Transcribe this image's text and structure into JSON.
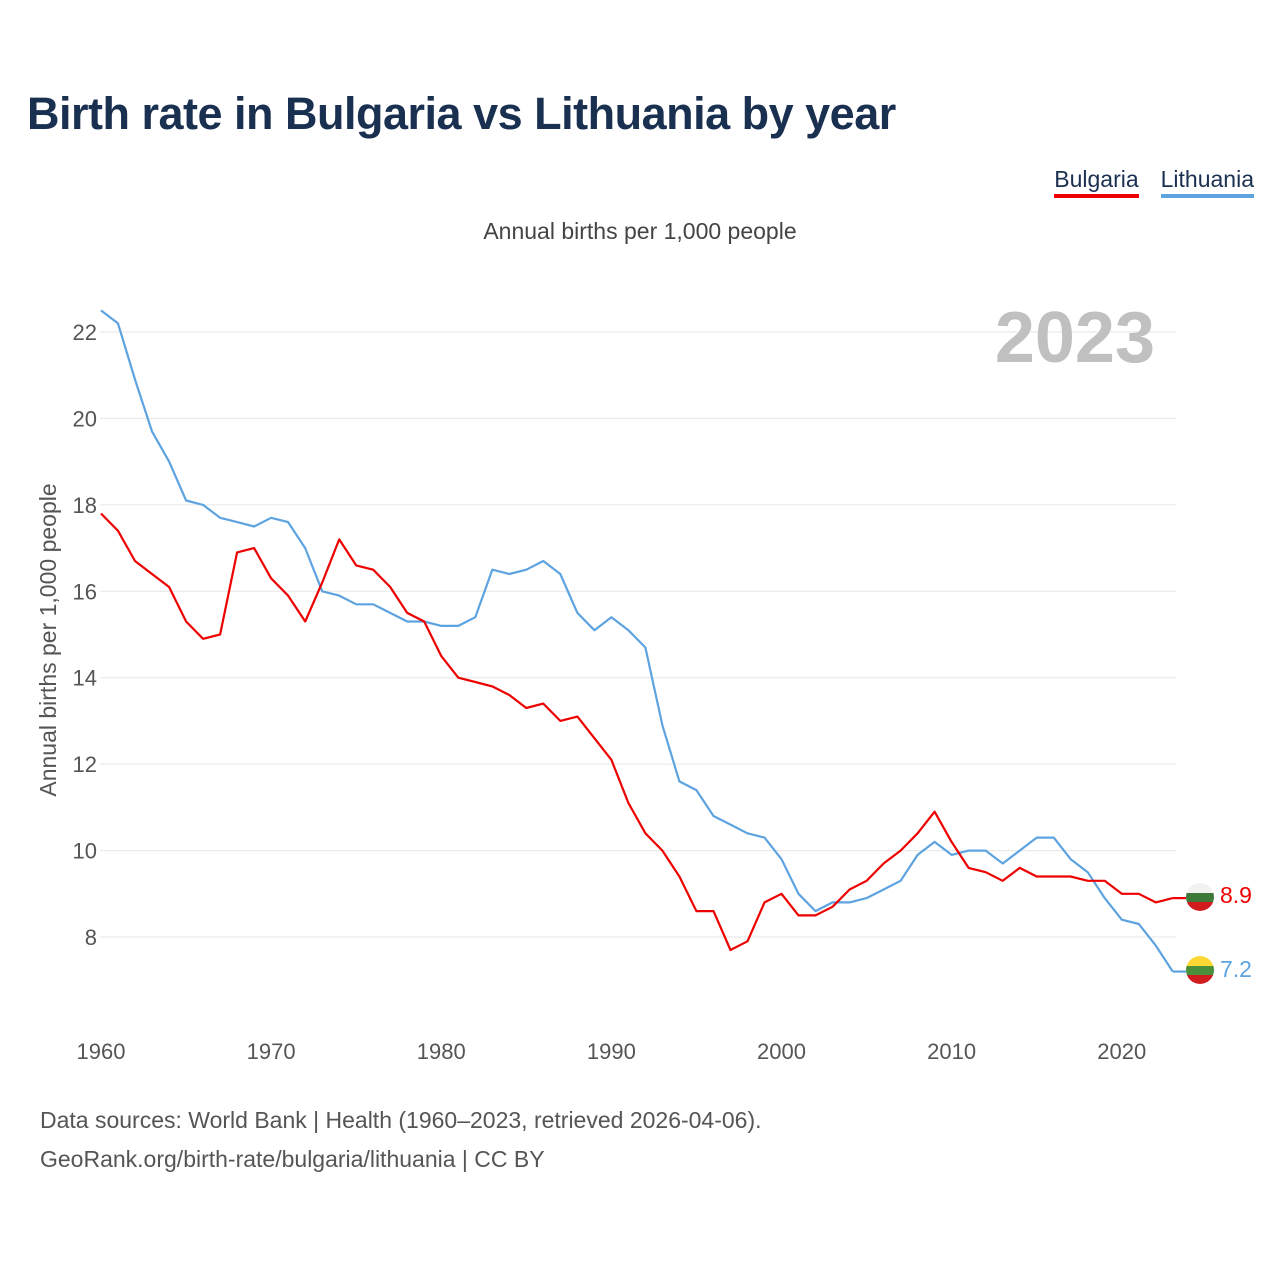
{
  "title": "Birth rate in Bulgaria vs Lithuania by year",
  "subtitle": "Annual births per 1,000 people",
  "legend": [
    {
      "label": "Bulgaria",
      "color": "#ee0000"
    },
    {
      "label": "Lithuania",
      "color": "#5da3e0"
    }
  ],
  "year_label": "2023",
  "end_labels": {
    "bulgaria": "8.9",
    "lithuania": "7.2"
  },
  "source_line1": "Data sources: World Bank | Health (1960–2023, retrieved 2026-04-06).",
  "source_line2": "GeoRank.org/birth-rate/bulgaria/lithuania | CC BY",
  "chart_data": {
    "type": "line",
    "title": "Birth rate in Bulgaria vs Lithuania by year",
    "xlabel": "",
    "ylabel": "Annual births per 1,000 people",
    "xlim": [
      1960,
      2023
    ],
    "ylim": [
      7,
      22.5
    ],
    "x_ticks": [
      "1960",
      "1970",
      "1980",
      "1990",
      "2000",
      "2010",
      "2020"
    ],
    "y_ticks": [
      "8",
      "10",
      "12",
      "14",
      "16",
      "18",
      "20",
      "22"
    ],
    "x": [
      1960,
      1961,
      1962,
      1963,
      1964,
      1965,
      1966,
      1967,
      1968,
      1969,
      1970,
      1971,
      1972,
      1973,
      1974,
      1975,
      1976,
      1977,
      1978,
      1979,
      1980,
      1981,
      1982,
      1983,
      1984,
      1985,
      1986,
      1987,
      1988,
      1989,
      1990,
      1991,
      1992,
      1993,
      1994,
      1995,
      1996,
      1997,
      1998,
      1999,
      2000,
      2001,
      2002,
      2003,
      2004,
      2005,
      2006,
      2007,
      2008,
      2009,
      2010,
      2011,
      2012,
      2013,
      2014,
      2015,
      2016,
      2017,
      2018,
      2019,
      2020,
      2021,
      2022,
      2023
    ],
    "series": [
      {
        "name": "Bulgaria",
        "color": "#ee0000",
        "values": [
          17.8,
          17.4,
          16.7,
          16.4,
          16.1,
          15.3,
          14.9,
          15.0,
          16.9,
          17.0,
          16.3,
          15.9,
          15.3,
          16.2,
          17.2,
          16.6,
          16.5,
          16.1,
          15.5,
          15.3,
          14.5,
          14.0,
          13.9,
          13.8,
          13.6,
          13.3,
          13.4,
          13.0,
          13.1,
          12.6,
          12.1,
          11.1,
          10.4,
          10.0,
          9.4,
          8.6,
          8.6,
          7.7,
          7.9,
          8.8,
          9.0,
          8.5,
          8.5,
          8.7,
          9.1,
          9.3,
          9.7,
          10.0,
          10.4,
          10.9,
          10.2,
          9.6,
          9.5,
          9.3,
          9.6,
          9.4,
          9.4,
          9.4,
          9.3,
          9.3,
          9.0,
          9.0,
          8.8,
          8.9
        ]
      },
      {
        "name": "Lithuania",
        "color": "#5da3e0",
        "values": [
          22.5,
          22.2,
          20.9,
          19.7,
          19.0,
          18.1,
          18.0,
          17.7,
          17.6,
          17.5,
          17.7,
          17.6,
          17.0,
          16.0,
          15.9,
          15.7,
          15.7,
          15.5,
          15.3,
          15.3,
          15.2,
          15.2,
          15.4,
          16.5,
          16.4,
          16.5,
          16.7,
          16.4,
          15.5,
          15.1,
          15.4,
          15.1,
          14.7,
          12.9,
          11.6,
          11.4,
          10.8,
          10.6,
          10.4,
          10.3,
          9.8,
          9.0,
          8.6,
          8.8,
          8.8,
          8.9,
          9.1,
          9.3,
          9.9,
          10.2,
          9.9,
          10.0,
          10.0,
          9.7,
          10.0,
          10.3,
          10.3,
          9.8,
          9.5,
          8.9,
          8.4,
          8.3,
          7.8,
          7.2
        ]
      }
    ]
  }
}
